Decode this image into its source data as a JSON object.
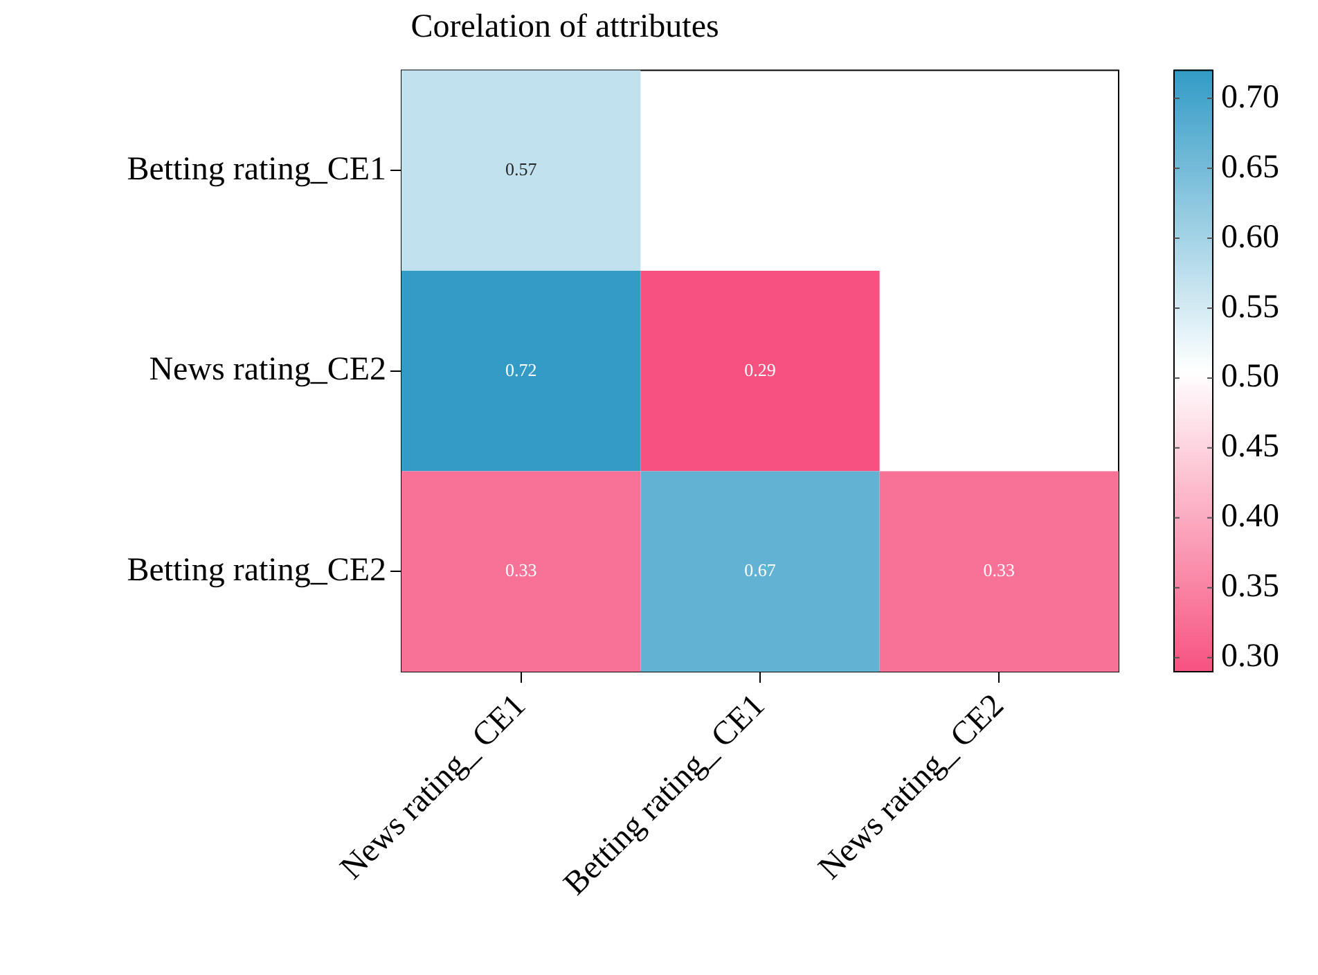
{
  "chart_data": {
    "type": "heatmap",
    "title": "Corelation of attributes",
    "categories": [
      "News rating_ CE1",
      "Betting rating_ CE1",
      "News rating_ CE2"
    ],
    "y_categories": [
      "Betting rating_CE1",
      "News rating_CE2",
      "Betting rating_CE2"
    ],
    "cells": [
      [
        0.57,
        null,
        null
      ],
      [
        0.72,
        0.29,
        null
      ],
      [
        0.33,
        0.67,
        0.33
      ]
    ],
    "data_labels": true,
    "clim": [
      0.29,
      0.72
    ],
    "cticks": [
      {
        "value": 0.3,
        "label": "0.30"
      },
      0.35,
      {
        "value": 0.4,
        "label": "0.40"
      },
      0.45,
      {
        "value": 0.5,
        "label": "0.50"
      },
      0.55,
      {
        "value": 0.6,
        "label": "0.60"
      },
      0.65,
      {
        "value": 0.7,
        "label": "0.70"
      }
    ]
  }
}
